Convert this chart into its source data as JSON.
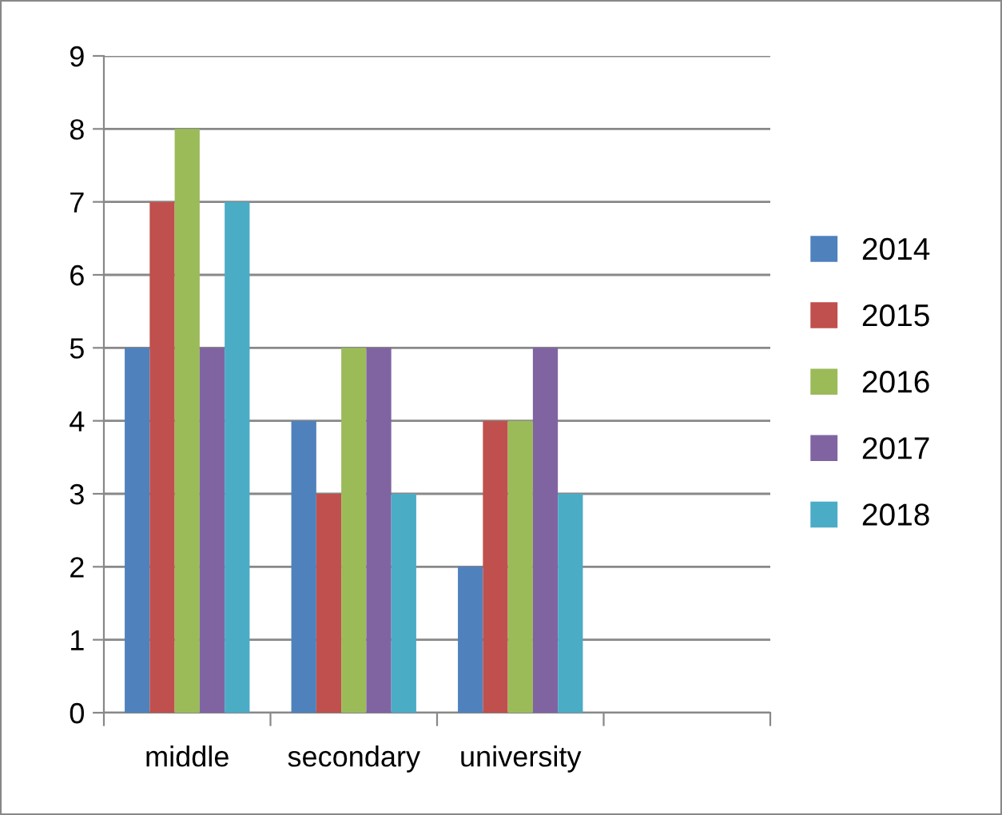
{
  "chart_data": {
    "type": "bar",
    "categories": [
      "middle",
      "secondary",
      "university",
      null
    ],
    "series": [
      {
        "name": "2014",
        "color": "#4f81bd",
        "values": [
          5,
          4,
          2,
          null
        ]
      },
      {
        "name": "2015",
        "color": "#c0504d",
        "values": [
          7,
          3,
          4,
          null
        ]
      },
      {
        "name": "2016",
        "color": "#9bbb59",
        "values": [
          8,
          5,
          4,
          null
        ]
      },
      {
        "name": "2017",
        "color": "#8064a2",
        "values": [
          5,
          5,
          5,
          null
        ]
      },
      {
        "name": "2018",
        "color": "#4bacc6",
        "values": [
          7,
          3,
          3,
          null
        ]
      }
    ],
    "ylim": [
      0,
      9
    ],
    "yticks": [
      0,
      1,
      2,
      3,
      4,
      5,
      6,
      7,
      8,
      9
    ],
    "grid": "y",
    "legend": "right"
  }
}
